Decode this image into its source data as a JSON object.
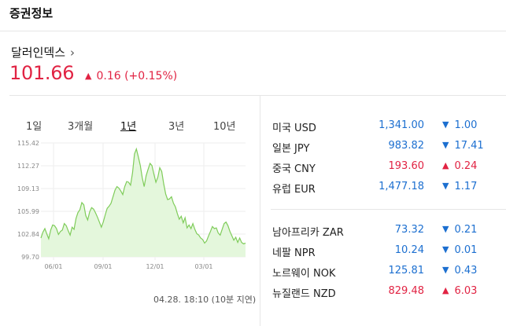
{
  "section_title": "증권정보",
  "index": {
    "name": "달러인덱스",
    "chevron": "›",
    "value": "101.66",
    "change_arrow": "▲",
    "change": "0.16 (+0.15%)"
  },
  "tabs": [
    "1일",
    "3개월",
    "1년",
    "3년",
    "10년"
  ],
  "active_tab": "1년",
  "timestamp": "04.28. 18:10 (10분 지연)",
  "chart_data": {
    "type": "area",
    "y_ticks": [
      "115.42",
      "112.27",
      "109.13",
      "105.99",
      "102.84",
      "99.70"
    ],
    "x_ticks": [
      "06/01",
      "09/01",
      "12/01",
      "03/01"
    ],
    "ylim": [
      99.7,
      115.42
    ],
    "values": [
      102.3,
      103.1,
      103.6,
      102.9,
      102.2,
      103.4,
      104.1,
      104.0,
      103.6,
      102.8,
      103.2,
      103.4,
      104.3,
      104.0,
      103.3,
      102.7,
      103.8,
      103.5,
      105.0,
      105.8,
      106.2,
      107.2,
      106.9,
      105.4,
      104.8,
      105.9,
      106.5,
      106.3,
      105.8,
      105.2,
      104.5,
      103.8,
      104.5,
      105.5,
      106.4,
      106.7,
      107.1,
      108.0,
      108.9,
      109.4,
      109.2,
      108.8,
      108.3,
      109.4,
      110.1,
      110.0,
      109.6,
      111.3,
      113.9,
      114.6,
      113.5,
      112.3,
      110.6,
      109.4,
      110.9,
      111.8,
      112.6,
      112.3,
      111.1,
      110.0,
      110.7,
      112.0,
      111.5,
      109.8,
      108.4,
      107.6,
      107.7,
      108.0,
      107.1,
      106.6,
      105.7,
      104.9,
      105.3,
      104.4,
      105.1,
      103.7,
      104.1,
      103.6,
      104.3,
      103.5,
      102.9,
      102.7,
      102.3,
      102.1,
      101.6,
      101.9,
      102.6,
      103.2,
      103.9,
      103.6,
      103.7,
      103.0,
      102.7,
      103.5,
      104.3,
      104.5,
      104.0,
      103.2,
      102.6,
      102.0,
      102.4,
      101.7,
      102.3,
      101.7,
      101.5,
      101.6
    ]
  },
  "currencies_group1": [
    {
      "name": "미국 USD",
      "price": "1,341.00",
      "arrow": "▼",
      "change": "1.00",
      "dir": "down"
    },
    {
      "name": "일본 JPY",
      "price": "983.82",
      "arrow": "▼",
      "change": "17.41",
      "dir": "down"
    },
    {
      "name": "중국 CNY",
      "price": "193.60",
      "arrow": "▲",
      "change": "0.24",
      "dir": "up"
    },
    {
      "name": "유럽 EUR",
      "price": "1,477.18",
      "arrow": "▼",
      "change": "1.17",
      "dir": "down"
    }
  ],
  "currencies_group2": [
    {
      "name": "남아프리카 ZAR",
      "price": "73.32",
      "arrow": "▼",
      "change": "0.21",
      "dir": "down"
    },
    {
      "name": "네팔 NPR",
      "price": "10.24",
      "arrow": "▼",
      "change": "0.01",
      "dir": "down"
    },
    {
      "name": "노르웨이 NOK",
      "price": "125.81",
      "arrow": "▼",
      "change": "0.43",
      "dir": "down"
    },
    {
      "name": "뉴질랜드 NZD",
      "price": "829.48",
      "arrow": "▲",
      "change": "6.03",
      "dir": "up"
    }
  ],
  "colors": {
    "up": "#e12343",
    "down": "#1c6fd0",
    "line": "#7fcc5a",
    "fill": "#e4f7dc"
  }
}
